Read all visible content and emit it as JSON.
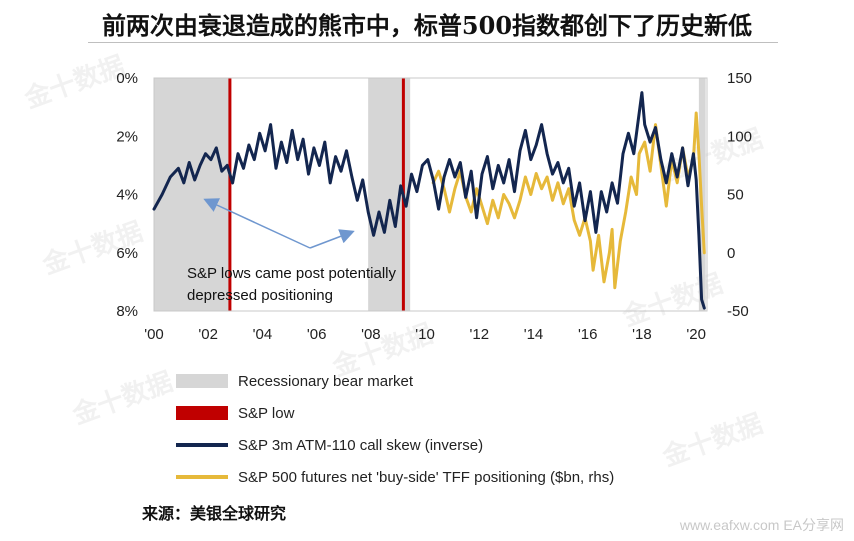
{
  "headline": "前两次由衰退造成的熊市中，标普500指数都创下了历史新低",
  "source": "来源：美银全球研究",
  "watermark": "金十数据",
  "footer_watermark": "www.eafxw.com  EA分享网",
  "colors": {
    "recession": "#d6d6d6",
    "sp_low": "#c00000",
    "skew": "#13264f",
    "tff": "#e6b93a",
    "arrow": "#6f97cf"
  },
  "chart_data": {
    "type": "line",
    "title": "",
    "x_ticks": [
      "'00",
      "'02",
      "'04",
      "'06",
      "'08",
      "'10",
      "'12",
      "'14",
      "'16",
      "'18",
      "'20"
    ],
    "left_axis": {
      "ticks": [
        "0%",
        "2%",
        "4%",
        "6%",
        "8%"
      ],
      "range": [
        0,
        8
      ],
      "inverted": true
    },
    "right_axis": {
      "ticks": [
        "150",
        "100",
        "50",
        "0",
        "-50"
      ],
      "range": [
        -50,
        150
      ]
    },
    "recession_periods": [
      [
        2000.0,
        2002.8
      ],
      [
        2007.9,
        2009.45
      ],
      [
        2020.1,
        2020.35
      ]
    ],
    "sp_lows": [
      2002.8,
      2009.2
    ],
    "annotation": {
      "lines": [
        "S&P lows came post potentially",
        "depressed positioning"
      ]
    },
    "legend": [
      {
        "label": "Recessionary bear market",
        "type": "band"
      },
      {
        "label": "S&P low",
        "type": "band-red"
      },
      {
        "label": "S&P 3m ATM-110 call skew (inverse)",
        "type": "line-navy"
      },
      {
        "label": "S&P 500 futures net 'buy-side' TFF positioning ($bn, rhs)",
        "type": "line-gold"
      }
    ],
    "series": [
      {
        "name": "S&P 3m ATM-110 call skew (inverse)",
        "axis": "left",
        "points": [
          [
            2000.0,
            4.5
          ],
          [
            2000.3,
            4.0
          ],
          [
            2000.6,
            3.4
          ],
          [
            2000.9,
            3.1
          ],
          [
            2001.1,
            3.6
          ],
          [
            2001.3,
            2.9
          ],
          [
            2001.5,
            3.5
          ],
          [
            2001.7,
            3.0
          ],
          [
            2001.9,
            2.6
          ],
          [
            2002.1,
            2.8
          ],
          [
            2002.3,
            2.4
          ],
          [
            2002.5,
            3.2
          ],
          [
            2002.7,
            3.0
          ],
          [
            2002.9,
            3.6
          ],
          [
            2003.1,
            2.6
          ],
          [
            2003.3,
            3.1
          ],
          [
            2003.5,
            2.3
          ],
          [
            2003.7,
            2.8
          ],
          [
            2003.9,
            1.9
          ],
          [
            2004.1,
            2.5
          ],
          [
            2004.3,
            1.6
          ],
          [
            2004.5,
            3.1
          ],
          [
            2004.7,
            2.2
          ],
          [
            2004.9,
            2.9
          ],
          [
            2005.1,
            1.8
          ],
          [
            2005.3,
            2.8
          ],
          [
            2005.5,
            2.1
          ],
          [
            2005.7,
            3.3
          ],
          [
            2005.9,
            2.4
          ],
          [
            2006.1,
            3.0
          ],
          [
            2006.3,
            2.2
          ],
          [
            2006.5,
            3.6
          ],
          [
            2006.7,
            2.7
          ],
          [
            2006.9,
            3.2
          ],
          [
            2007.1,
            2.5
          ],
          [
            2007.3,
            3.4
          ],
          [
            2007.5,
            4.2
          ],
          [
            2007.7,
            3.5
          ],
          [
            2007.9,
            4.6
          ],
          [
            2008.1,
            5.4
          ],
          [
            2008.3,
            4.6
          ],
          [
            2008.5,
            5.3
          ],
          [
            2008.7,
            4.2
          ],
          [
            2008.9,
            5.1
          ],
          [
            2009.1,
            3.7
          ],
          [
            2009.3,
            4.4
          ],
          [
            2009.5,
            3.3
          ],
          [
            2009.7,
            3.9
          ],
          [
            2009.9,
            3.0
          ],
          [
            2010.1,
            2.8
          ],
          [
            2010.3,
            3.5
          ],
          [
            2010.5,
            4.5
          ],
          [
            2010.7,
            3.4
          ],
          [
            2010.9,
            2.8
          ],
          [
            2011.1,
            3.4
          ],
          [
            2011.3,
            2.9
          ],
          [
            2011.5,
            4.1
          ],
          [
            2011.7,
            3.2
          ],
          [
            2011.9,
            4.8
          ],
          [
            2012.1,
            3.3
          ],
          [
            2012.3,
            2.7
          ],
          [
            2012.5,
            3.8
          ],
          [
            2012.7,
            3.0
          ],
          [
            2012.9,
            3.6
          ],
          [
            2013.1,
            2.8
          ],
          [
            2013.3,
            3.9
          ],
          [
            2013.5,
            2.5
          ],
          [
            2013.7,
            1.8
          ],
          [
            2013.9,
            2.8
          ],
          [
            2014.1,
            2.3
          ],
          [
            2014.3,
            1.6
          ],
          [
            2014.5,
            2.6
          ],
          [
            2014.7,
            3.3
          ],
          [
            2014.9,
            2.9
          ],
          [
            2015.1,
            3.6
          ],
          [
            2015.3,
            3.1
          ],
          [
            2015.5,
            4.4
          ],
          [
            2015.7,
            3.6
          ],
          [
            2015.9,
            4.9
          ],
          [
            2016.1,
            3.9
          ],
          [
            2016.3,
            5.3
          ],
          [
            2016.5,
            3.9
          ],
          [
            2016.7,
            4.6
          ],
          [
            2016.9,
            3.6
          ],
          [
            2017.1,
            4.3
          ],
          [
            2017.3,
            2.6
          ],
          [
            2017.5,
            1.9
          ],
          [
            2017.7,
            2.6
          ],
          [
            2017.9,
            1.2
          ],
          [
            2018.0,
            0.5
          ],
          [
            2018.1,
            1.6
          ],
          [
            2018.3,
            2.2
          ],
          [
            2018.5,
            1.7
          ],
          [
            2018.7,
            2.8
          ],
          [
            2018.9,
            3.6
          ],
          [
            2019.1,
            2.6
          ],
          [
            2019.3,
            3.4
          ],
          [
            2019.5,
            2.4
          ],
          [
            2019.7,
            3.7
          ],
          [
            2019.9,
            2.6
          ],
          [
            2020.0,
            3.5
          ],
          [
            2020.1,
            5.4
          ],
          [
            2020.2,
            7.6
          ],
          [
            2020.3,
            7.9
          ]
        ]
      },
      {
        "name": "S&P 500 futures net 'buy-side' TFF positioning ($bn, rhs)",
        "axis": "right",
        "points": [
          [
            2010.3,
            60
          ],
          [
            2010.5,
            70
          ],
          [
            2010.7,
            55
          ],
          [
            2010.9,
            35
          ],
          [
            2011.1,
            55
          ],
          [
            2011.3,
            70
          ],
          [
            2011.5,
            48
          ],
          [
            2011.7,
            35
          ],
          [
            2011.9,
            55
          ],
          [
            2012.1,
            40
          ],
          [
            2012.3,
            25
          ],
          [
            2012.5,
            45
          ],
          [
            2012.7,
            30
          ],
          [
            2012.9,
            50
          ],
          [
            2013.1,
            42
          ],
          [
            2013.3,
            30
          ],
          [
            2013.5,
            45
          ],
          [
            2013.7,
            65
          ],
          [
            2013.9,
            50
          ],
          [
            2014.1,
            68
          ],
          [
            2014.3,
            55
          ],
          [
            2014.5,
            65
          ],
          [
            2014.7,
            45
          ],
          [
            2014.9,
            60
          ],
          [
            2015.1,
            42
          ],
          [
            2015.3,
            55
          ],
          [
            2015.5,
            28
          ],
          [
            2015.7,
            15
          ],
          [
            2015.9,
            30
          ],
          [
            2016.1,
            10
          ],
          [
            2016.2,
            -15
          ],
          [
            2016.4,
            15
          ],
          [
            2016.6,
            -25
          ],
          [
            2016.8,
            0
          ],
          [
            2016.9,
            20
          ],
          [
            2017.0,
            -30
          ],
          [
            2017.2,
            10
          ],
          [
            2017.4,
            35
          ],
          [
            2017.6,
            65
          ],
          [
            2017.8,
            50
          ],
          [
            2017.9,
            85
          ],
          [
            2018.1,
            95
          ],
          [
            2018.3,
            70
          ],
          [
            2018.5,
            110
          ],
          [
            2018.7,
            75
          ],
          [
            2018.9,
            40
          ],
          [
            2019.1,
            80
          ],
          [
            2019.3,
            60
          ],
          [
            2019.5,
            90
          ],
          [
            2019.7,
            65
          ],
          [
            2019.9,
            80
          ],
          [
            2020.0,
            120
          ],
          [
            2020.1,
            85
          ],
          [
            2020.2,
            40
          ],
          [
            2020.3,
            0
          ]
        ]
      }
    ]
  }
}
